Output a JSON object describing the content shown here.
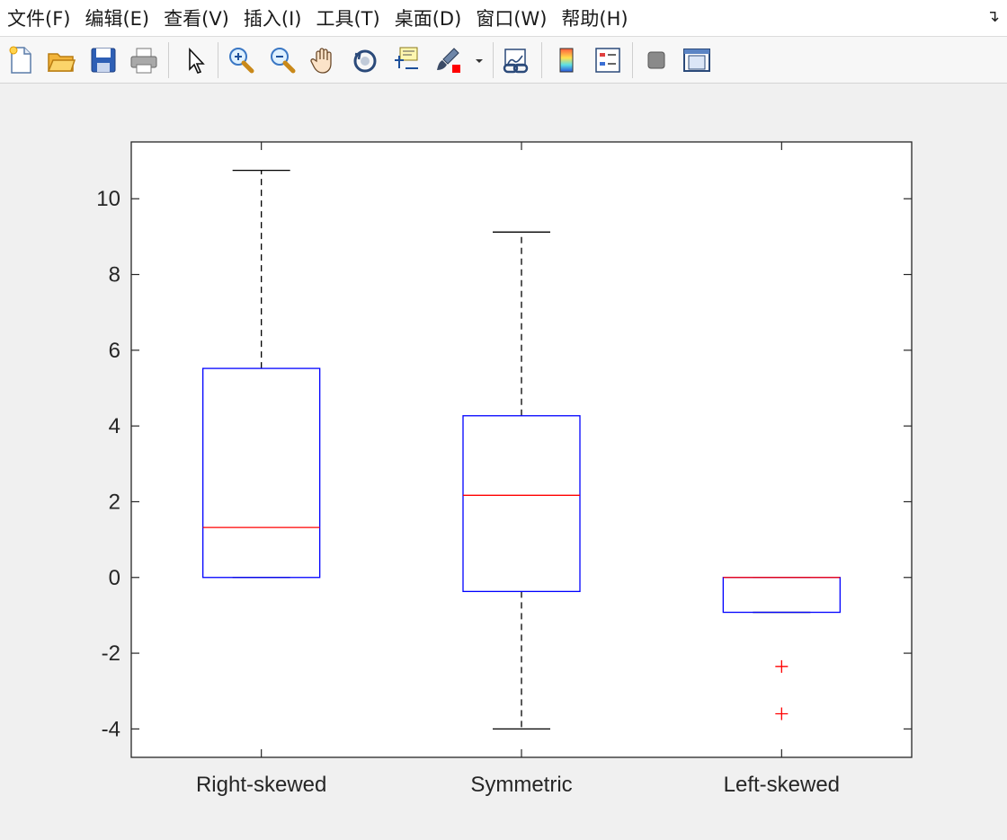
{
  "menubar": {
    "items": [
      {
        "label": "文件(F)"
      },
      {
        "label": "编辑(E)"
      },
      {
        "label": "查看(V)"
      },
      {
        "label": "插入(I)"
      },
      {
        "label": "工具(T)"
      },
      {
        "label": "桌面(D)"
      },
      {
        "label": "窗口(W)"
      },
      {
        "label": "帮助(H)"
      }
    ],
    "more_icon": "dock-arrow-icon"
  },
  "toolbar": {
    "buttons": [
      {
        "icon": "new-figure-icon"
      },
      {
        "icon": "open-file-icon"
      },
      {
        "icon": "save-icon"
      },
      {
        "icon": "print-icon"
      },
      {
        "icon": "edit-plot-arrow-icon"
      },
      {
        "icon": "zoom-in-icon"
      },
      {
        "icon": "zoom-out-icon"
      },
      {
        "icon": "pan-hand-icon"
      },
      {
        "icon": "rotate-3d-icon"
      },
      {
        "icon": "data-cursor-icon"
      },
      {
        "icon": "brush-icon"
      },
      {
        "icon": "link-plot-icon"
      },
      {
        "icon": "colorbar-icon"
      },
      {
        "icon": "legend-icon"
      },
      {
        "icon": "hide-plot-tools-icon"
      },
      {
        "icon": "show-plot-tools-icon"
      }
    ]
  },
  "chart_data": {
    "type": "boxplot",
    "title": "",
    "xlabel": "",
    "ylabel": "",
    "ylim": [
      -4.75,
      11.5
    ],
    "yticks": [
      -4,
      -2,
      0,
      2,
      4,
      6,
      8,
      10
    ],
    "ytick_labels": [
      "-4",
      "-2",
      "0",
      "2",
      "4",
      "6",
      "8",
      "10"
    ],
    "grid": false,
    "categories": [
      "Right-skewed",
      "Symmetric",
      "Left-skewed"
    ],
    "boxes": [
      {
        "whisker_low": 0,
        "q1": 0,
        "median": 1.32,
        "q3": 5.52,
        "whisker_high": 10.75,
        "outliers": []
      },
      {
        "whisker_low": -4.0,
        "q1": -0.37,
        "median": 2.17,
        "q3": 4.27,
        "whisker_high": 9.12,
        "outliers": []
      },
      {
        "whisker_low": -0.92,
        "q1": -0.92,
        "median": 0.0,
        "q3": 0.0,
        "whisker_high": 0.0,
        "outliers": [
          -2.35,
          -3.6
        ]
      }
    ],
    "colors": {
      "box": "#0000ff",
      "median": "#ff0000",
      "whisker": "#000000",
      "outlier": "#ff0000",
      "axes": "#262626"
    }
  }
}
